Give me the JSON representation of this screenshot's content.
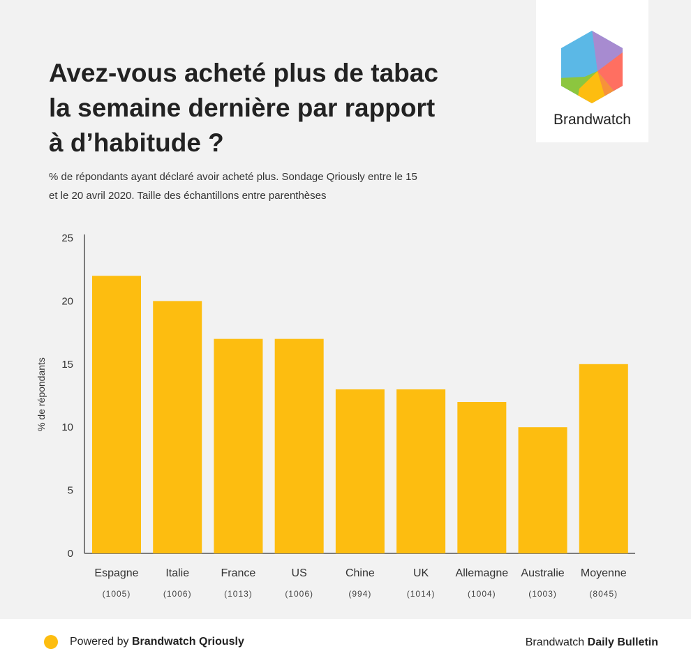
{
  "title": " Avez-vous acheté plus de tabac la semaine dernière par rapport à d’habitude ?",
  "subtitle": "% de répondants ayant déclaré avoir acheté plus. Sondage Qriously entre le 15 et le 20 avril 2020. Taille des échantillons entre parenthèses",
  "logo": {
    "text": "Brandwatch"
  },
  "footer": {
    "powered_prefix": "Powered by ",
    "powered_brand": "Brandwatch Qriously",
    "right_prefix": "Brandwatch ",
    "right_brand": "Daily Bulletin"
  },
  "colors": {
    "bar": "#fdbd10",
    "axis": "#555555",
    "background": "#f2f2f2"
  },
  "chart_data": {
    "type": "bar",
    "title": " Avez-vous acheté plus de tabac la semaine dernière par rapport à d’habitude ?",
    "ylabel": "% de répondants",
    "xlabel": "",
    "ylim": [
      0,
      25
    ],
    "yticks": [
      0,
      5,
      10,
      15,
      20,
      25
    ],
    "grid": false,
    "categories": [
      "Espagne",
      "Italie",
      "France",
      "US",
      "Chine",
      "UK",
      "Allemagne",
      "Australie",
      "Moyenne"
    ],
    "sample_sizes": [
      "(1005)",
      "(1006)",
      "(1013)",
      "(1006)",
      "(994)",
      "(1014)",
      "(1004)",
      "(1003)",
      "(8045)"
    ],
    "values": [
      22,
      20,
      17,
      17,
      13,
      13,
      12,
      10,
      15
    ]
  }
}
